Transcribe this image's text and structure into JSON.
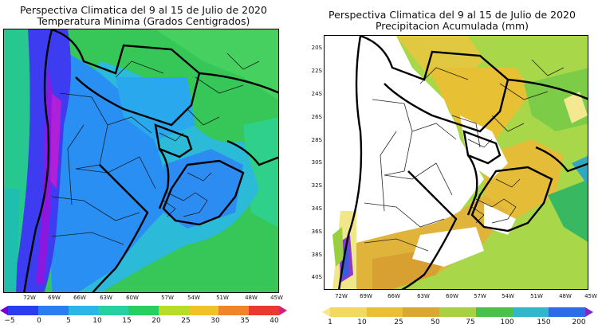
{
  "left": {
    "title_line1": "Perspectiva Climatica del 9 al 15 de Julio de 2020",
    "title_line2": "Temperatura Minima (Grados Centigrados)",
    "lon_labels": [
      "72W",
      "69W",
      "66W",
      "63W",
      "60W",
      "57W",
      "54W",
      "51W",
      "48W",
      "45W"
    ],
    "colorbar_labels": [
      "−5",
      "0",
      "5",
      "10",
      "15",
      "20",
      "25",
      "30",
      "35",
      "40"
    ],
    "colorbar_colors": [
      "#7a00d2",
      "#2a3cf0",
      "#2c7cf2",
      "#2cb6e8",
      "#28cf80",
      "#b8dc2a",
      "#f0c22a",
      "#f08428",
      "#e83a30",
      "#d81e74"
    ]
  },
  "right": {
    "title_line1": "Perspectiva Climatica del 9 al 15 de Julio de 2020",
    "title_line2": "Precipitacion Acumulada (mm)",
    "lat_labels": [
      "20S",
      "22S",
      "24S",
      "26S",
      "28S",
      "30S",
      "32S",
      "34S",
      "36S",
      "38S",
      "40S"
    ],
    "lon_labels": [
      "72W",
      "69W",
      "66W",
      "63W",
      "60W",
      "57W",
      "54W",
      "51W",
      "48W",
      "45W"
    ],
    "colorbar_labels": [
      "1",
      "10",
      "25",
      "50",
      "75",
      "100",
      "150",
      "200"
    ],
    "colorbar_colors": [
      "#f6e88a",
      "#e8c034",
      "#d8a830",
      "#a8d040",
      "#4cc04c",
      "#30b8c8",
      "#2c6ce8",
      "#7a28c8"
    ]
  }
}
